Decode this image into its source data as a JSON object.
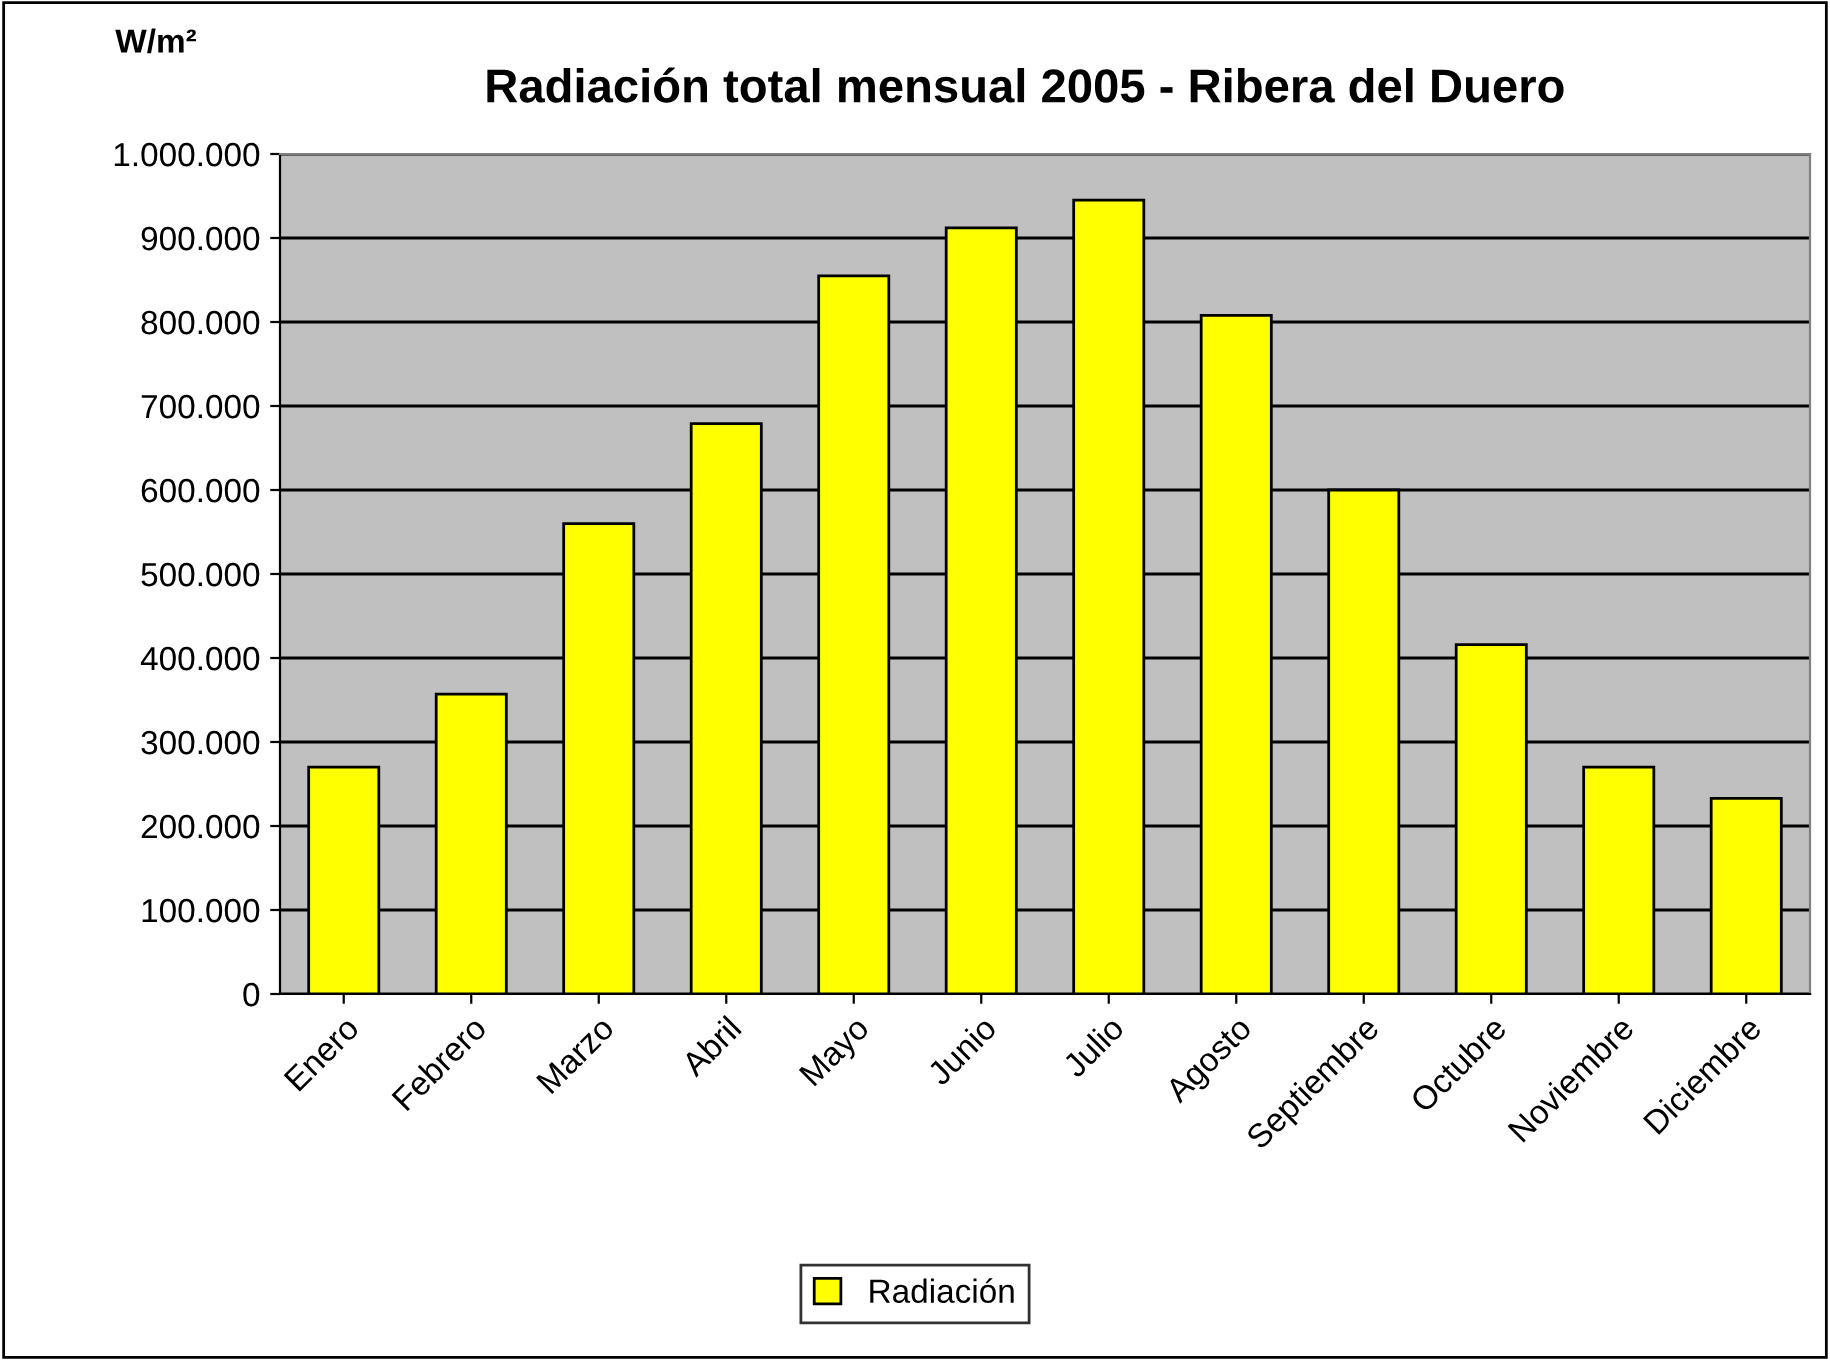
{
  "chart_data": {
    "type": "bar",
    "title": "Radiación total mensual 2005 - Ribera del Duero",
    "ylabel": "W/m²",
    "categories": [
      "Enero",
      "Febrero",
      "Marzo",
      "Abril",
      "Mayo",
      "Junio",
      "Julio",
      "Agosto",
      "Septiembre",
      "Octubre",
      "Noviembre",
      "Diciembre"
    ],
    "series": [
      {
        "name": "Radiación",
        "color": "#ffff00",
        "values": [
          270000,
          357000,
          560000,
          679000,
          855000,
          912000,
          945000,
          808000,
          600000,
          416000,
          270000,
          233000
        ]
      }
    ],
    "ylim": [
      0,
      1000000
    ],
    "yticks": [
      0,
      {
        "value": 100000,
        "label": "100.000"
      },
      {
        "value": 200000,
        "label": "200.000"
      },
      {
        "value": 300000,
        "label": "300.000"
      },
      {
        "value": 400000,
        "label": "400.000"
      },
      {
        "value": 500000,
        "label": "500.000"
      },
      {
        "value": 600000,
        "label": "600.000"
      },
      {
        "value": 700000,
        "label": "700.000"
      },
      {
        "value": 800000,
        "label": "800.000"
      },
      {
        "value": 900000,
        "label": "900.000"
      },
      {
        "value": 1000000,
        "label": "1.000.000"
      }
    ],
    "grid": "y",
    "legend": "bottom"
  }
}
